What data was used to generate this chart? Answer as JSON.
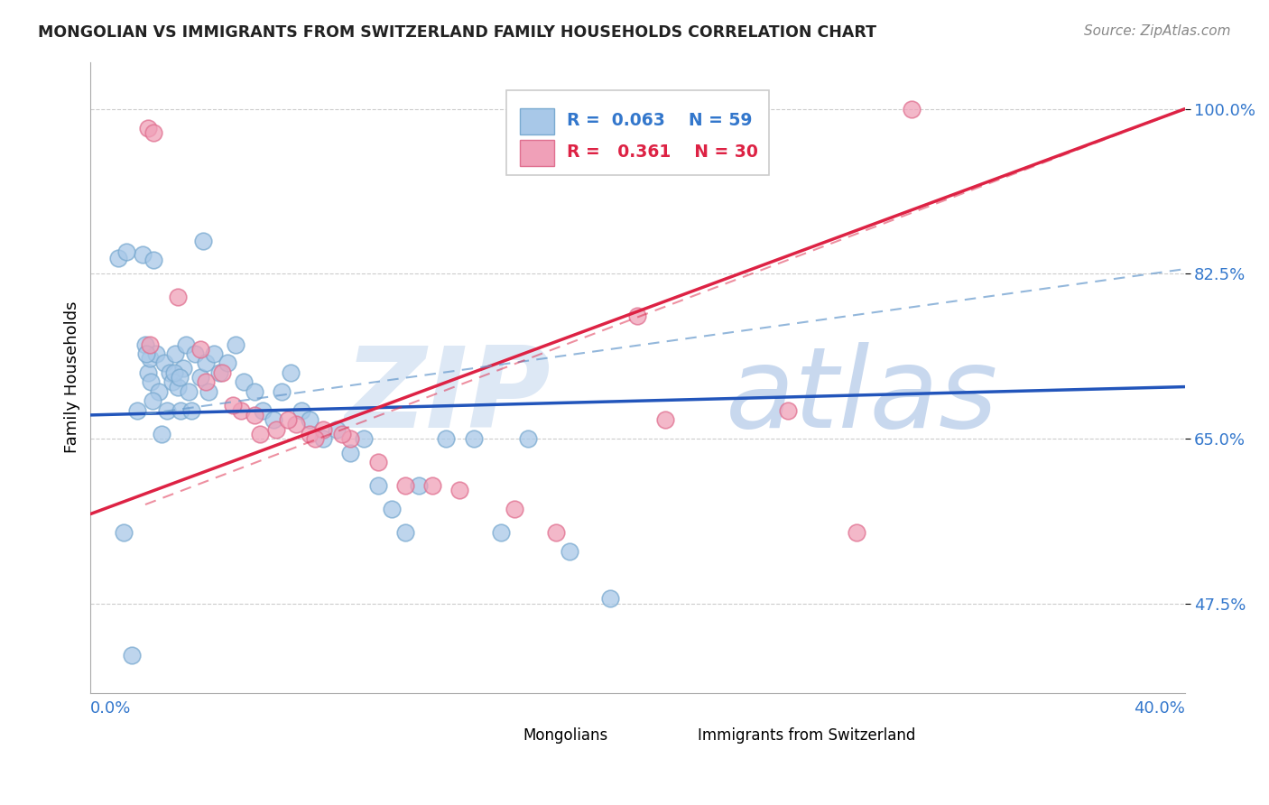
{
  "title": "MONGOLIAN VS IMMIGRANTS FROM SWITZERLAND FAMILY HOUSEHOLDS CORRELATION CHART",
  "source": "Source: ZipAtlas.com",
  "ylabel": "Family Households",
  "xlim": [
    0.0,
    40.0
  ],
  "ylim": [
    38.0,
    105.0
  ],
  "yticks": [
    47.5,
    65.0,
    82.5,
    100.0
  ],
  "ytick_labels": [
    "47.5%",
    "65.0%",
    "82.5%",
    "100.0%"
  ],
  "blue_color": "#a8c8e8",
  "pink_color": "#f0a0b8",
  "blue_edge_color": "#7aaad0",
  "pink_edge_color": "#e07090",
  "blue_line_color": "#2255bb",
  "pink_line_color": "#dd2244",
  "blue_dash_color": "#6699cc",
  "pink_dash_color": "#dd2244",
  "grid_color": "#cccccc",
  "watermark_zip_color": "#dde8f5",
  "watermark_atlas_color": "#c8d8ee",
  "legend_border_color": "#cccccc",
  "title_color": "#222222",
  "source_color": "#888888",
  "tick_label_color": "#3377cc",
  "bottom_label_color": "#3377cc",
  "mongolian_x": [
    1.2,
    1.5,
    1.7,
    1.9,
    2.0,
    2.1,
    2.15,
    2.2,
    2.3,
    2.4,
    2.5,
    2.6,
    2.7,
    2.8,
    2.9,
    3.0,
    3.1,
    3.2,
    3.3,
    3.4,
    3.5,
    3.6,
    3.7,
    3.8,
    4.0,
    4.1,
    4.2,
    4.3,
    4.5,
    4.7,
    5.0,
    5.3,
    5.6,
    6.0,
    6.3,
    6.7,
    7.0,
    7.3,
    7.7,
    8.0,
    8.5,
    9.0,
    9.5,
    10.0,
    10.5,
    11.0,
    11.5,
    12.0,
    13.0,
    14.0,
    15.0,
    16.0,
    17.5,
    19.0,
    1.0,
    1.3,
    2.05,
    2.25,
    3.05,
    3.25
  ],
  "mongolian_y": [
    55.0,
    42.0,
    68.0,
    84.5,
    75.0,
    72.0,
    73.5,
    71.0,
    84.0,
    74.0,
    70.0,
    65.5,
    73.0,
    68.0,
    72.0,
    71.0,
    74.0,
    70.5,
    68.0,
    72.5,
    75.0,
    70.0,
    68.0,
    74.0,
    71.5,
    86.0,
    73.0,
    70.0,
    74.0,
    72.0,
    73.0,
    75.0,
    71.0,
    70.0,
    68.0,
    67.0,
    70.0,
    72.0,
    68.0,
    67.0,
    65.0,
    66.0,
    63.5,
    65.0,
    60.0,
    57.5,
    55.0,
    60.0,
    65.0,
    65.0,
    55.0,
    65.0,
    53.0,
    48.0,
    84.2,
    84.8,
    74.0,
    69.0,
    72.0,
    71.5
  ],
  "swiss_x": [
    2.1,
    2.3,
    3.2,
    4.0,
    4.8,
    5.5,
    6.0,
    6.8,
    7.5,
    8.0,
    8.5,
    9.5,
    10.5,
    11.5,
    12.5,
    13.5,
    15.5,
    17.0,
    20.0,
    21.0,
    25.5,
    28.0,
    30.0,
    2.15,
    4.2,
    5.2,
    6.2,
    7.2,
    8.2,
    9.2
  ],
  "swiss_y": [
    98.0,
    97.5,
    80.0,
    74.5,
    72.0,
    68.0,
    67.5,
    66.0,
    66.5,
    65.5,
    66.0,
    65.0,
    62.5,
    60.0,
    60.0,
    59.5,
    57.5,
    55.0,
    78.0,
    67.0,
    68.0,
    55.0,
    100.0,
    75.0,
    71.0,
    68.5,
    65.5,
    67.0,
    65.0,
    65.5
  ],
  "blue_trend_x0": 0.0,
  "blue_trend_y0": 67.5,
  "blue_trend_x1": 40.0,
  "blue_trend_y1": 70.5,
  "pink_trend_x0": 0.0,
  "pink_trend_y0": 57.0,
  "pink_trend_x1": 40.0,
  "pink_trend_y1": 100.0,
  "blue_dash_x0": 2.0,
  "blue_dash_y0": 67.6,
  "blue_dash_x1": 40.0,
  "blue_dash_y1": 83.0,
  "pink_dash_x0": 2.0,
  "pink_dash_y0": 58.0,
  "pink_dash_x1": 40.0,
  "pink_dash_y1": 100.0
}
